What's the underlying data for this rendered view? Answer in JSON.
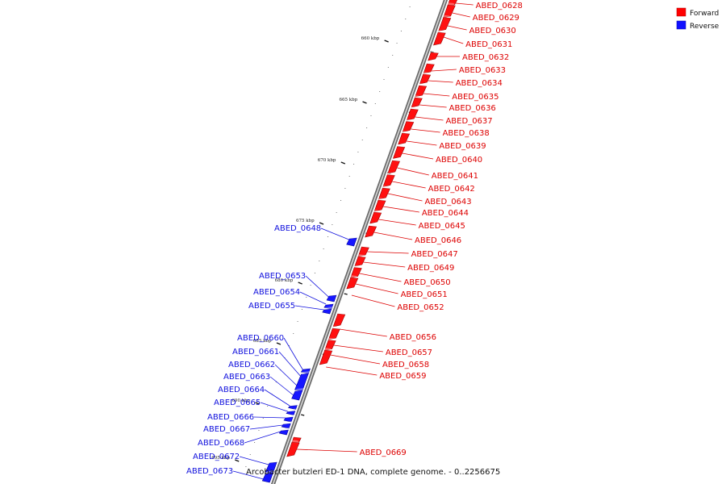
{
  "caption": "Arcobacter butzleri ED-1 DNA, complete genome. - 0..2256675",
  "legend": [
    {
      "label": "Forward",
      "color": "#ff0000"
    },
    {
      "label": "Reverse",
      "color": "#1010ff"
    }
  ],
  "ticks": [
    {
      "label": "660 kbp",
      "kb": 660
    },
    {
      "label": "665 kbp",
      "kb": 665
    },
    {
      "label": "670 kbp",
      "kb": 670
    },
    {
      "label": "675 kbp",
      "kb": 675
    },
    {
      "label": "680 kbp",
      "kb": 680
    },
    {
      "label": "685 kbp",
      "kb": 685
    },
    {
      "label": "690 kbp",
      "kb": 690
    },
    {
      "label": "695 kbp",
      "kb": 695
    }
  ],
  "forward_genes": [
    "ABED_0628",
    "ABED_0629",
    "ABED_0630",
    "ABED_0631",
    "ABED_0632",
    "ABED_0633",
    "ABED_0634",
    "ABED_0635",
    "ABED_0636",
    "ABED_0637",
    "ABED_0638",
    "ABED_0639",
    "ABED_0640",
    "ABED_0641",
    "ABED_0642",
    "ABED_0643",
    "ABED_0644",
    "ABED_0645",
    "ABED_0646",
    "ABED_0647",
    "ABED_0649",
    "ABED_0650",
    "ABED_0651",
    "ABED_0652",
    "ABED_0656",
    "ABED_0657",
    "ABED_0658",
    "ABED_0659",
    "ABED_0669"
  ],
  "reverse_genes": [
    "ABED_0648",
    "ABED_0653",
    "ABED_0654",
    "ABED_0655",
    "ABED_0660",
    "ABED_0661",
    "ABED_0662",
    "ABED_0663",
    "ABED_0664",
    "ABED_0665",
    "ABED_0666",
    "ABED_0667",
    "ABED_0668",
    "ABED_0672",
    "ABED_0673"
  ]
}
